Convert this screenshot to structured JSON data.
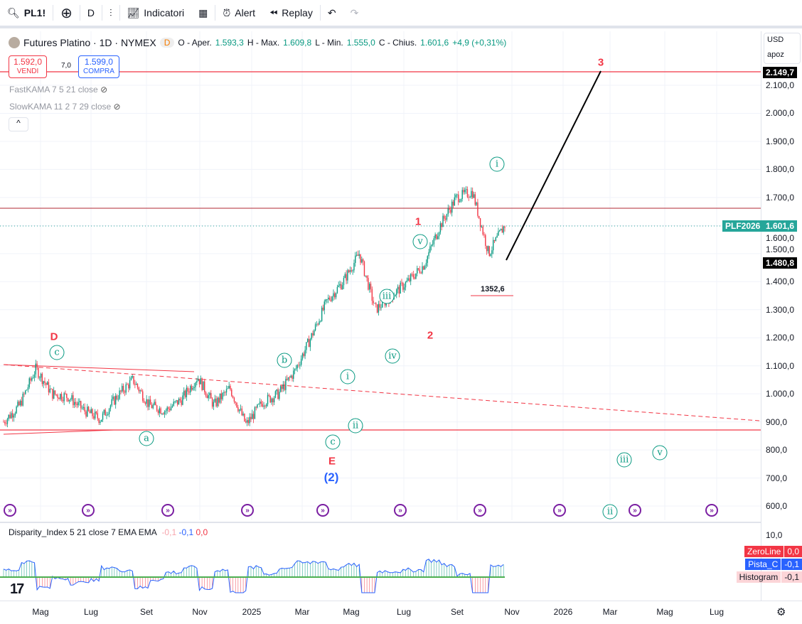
{
  "toolbar": {
    "symbol": "PL1!",
    "interval": "D",
    "indicators": "Indicatori",
    "alert": "Alert",
    "replay": "Replay"
  },
  "legend": {
    "title": "Futures Platino · 1D · NYMEX",
    "badge": "D",
    "o_label": "O - Aper.",
    "o": "1.593,3",
    "h_label": "H - Max.",
    "h": "1.609,8",
    "l_label": "L - Min.",
    "l": "1.555,0",
    "c_label": "C - Chius.",
    "c": "1.601,6",
    "change": "+4,9 (+0,31%)",
    "sell_price": "1.592,0",
    "sell_label": "VENDI",
    "spread": "7,0",
    "buy_price": "1.599,0",
    "buy_label": "COMPRA",
    "fastkama": "FastKAMA 7 5 21 close",
    "slowkama": "SlowKAMA 11 2 7 29 close",
    "collapse": "^"
  },
  "price_axis": {
    "currency": "USD",
    "scale": "apoz",
    "ticks": [
      "2.100,0",
      "2.000,0",
      "1.900,0",
      "1.800,0",
      "1.700,0",
      "1.600,0",
      "1.500,0",
      "1.400,0",
      "1.300,0",
      "1.200,0",
      "1.100,0",
      "1.000,0",
      "900,0",
      "800,0",
      "700,0",
      "600,0"
    ],
    "top_line_label": "2.149,7",
    "symbol_tag": "PLF2026",
    "last_price": "1.601,6",
    "cursor_price": "1.480,8"
  },
  "annotations": {
    "w3": "3",
    "w1": "1",
    "w2": "2",
    "D": "D",
    "E": "E",
    "w2p": "(2)",
    "i": "i",
    "v": "v",
    "iii": "iii",
    "iv": "iv",
    "ii": "ii",
    "c": "c",
    "a": "a",
    "b": "b",
    "v2": "v",
    "iii2": "iii",
    "ii2": "ii",
    "level": "1352,6"
  },
  "indicator": {
    "title": "Disparity_Index 5 21 close 7 EMA EMA",
    "v1": "-0,1",
    "v2": "-0,1",
    "v3": "0,0",
    "tick": "10,0",
    "zero_label": "ZeroLine",
    "zero_val": "0,0",
    "pista_label": "Pista_C",
    "pista_val": "-0,1",
    "hist_label": "Histogram",
    "hist_val": "-0,1"
  },
  "time_axis": [
    "Mag",
    "Lug",
    "Set",
    "Nov",
    "2025",
    "Mar",
    "Mag",
    "Lug",
    "Set",
    "Nov",
    "2026",
    "Mar",
    "Mag",
    "Lug"
  ],
  "chart_data": {
    "type": "candlestick",
    "title": "Futures Platino 1D NYMEX",
    "approx_closes": [
      [
        "2024-04",
        900
      ],
      [
        "2024-04",
        960
      ],
      [
        "2024-05",
        1090
      ],
      [
        "2024-06",
        1000
      ],
      [
        "2024-07",
        990
      ],
      [
        "2024-07",
        940
      ],
      [
        "2024-09",
        910
      ],
      [
        "2024-09",
        990
      ],
      [
        "2024-10",
        1050
      ],
      [
        "2024-11",
        960
      ],
      [
        "2025-01",
        940
      ],
      [
        "2025-01",
        980
      ],
      [
        "2025-02",
        1060
      ],
      [
        "2025-03",
        960
      ],
      [
        "2025-03",
        1020
      ],
      [
        "2025-04",
        890
      ],
      [
        "2025-05",
        970
      ],
      [
        "2025-05",
        1000
      ],
      [
        "2025-05",
        1080
      ],
      [
        "2025-06",
        1200
      ],
      [
        "2025-06",
        1330
      ],
      [
        "2025-07",
        1400
      ],
      [
        "2025-07",
        1500
      ],
      [
        "2025-08",
        1300
      ],
      [
        "2025-08",
        1350
      ],
      [
        "2025-09",
        1400
      ],
      [
        "2025-09",
        1460
      ],
      [
        "2025-10",
        1600
      ],
      [
        "2025-10",
        1700
      ],
      [
        "2025-10",
        1720
      ],
      [
        "2025-10",
        1500
      ],
      [
        "2025-10",
        1601.6
      ]
    ],
    "ylim": [
      550,
      2200
    ],
    "colors": {
      "up": "#089981",
      "down": "#f23645",
      "wave": "#f23645"
    }
  }
}
